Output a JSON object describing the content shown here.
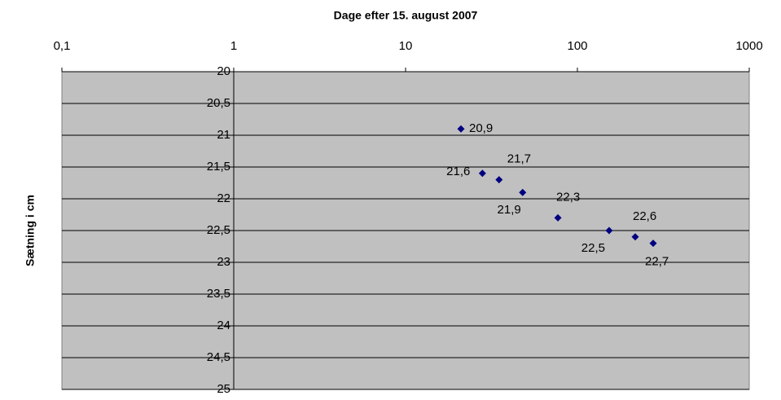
{
  "chart_data": {
    "type": "scatter",
    "title": "Dage efter 15. august 2007",
    "y_label": "Sætning i cm",
    "x": [
      21,
      28,
      35,
      48,
      77,
      153,
      217,
      276
    ],
    "values": [
      20.9,
      21.6,
      21.7,
      21.9,
      22.3,
      22.5,
      22.6,
      22.7
    ],
    "value_labels": [
      "20,9",
      "21,6",
      "21,7",
      "21,9",
      "22,3",
      "22,5",
      "22,6",
      "22,7"
    ],
    "color": "#000080",
    "xlim": [
      0.1,
      1000
    ],
    "xlog": true,
    "xticks": [
      {
        "value": 0.1,
        "label": "0,1"
      },
      1,
      10,
      100,
      1000
    ],
    "ylim": [
      20,
      25
    ],
    "yreverse": true,
    "y_axis_at_x": 1,
    "yticks": [
      20,
      {
        "value": 20.5,
        "label": "20,5"
      },
      21,
      {
        "value": 21.5,
        "label": "21,5"
      },
      22,
      {
        "value": 22.5,
        "label": "22,5"
      },
      23,
      {
        "value": 23.5,
        "label": "23,5"
      },
      24,
      {
        "value": 24.5,
        "label": "24,5"
      },
      25
    ],
    "grid": true
  }
}
